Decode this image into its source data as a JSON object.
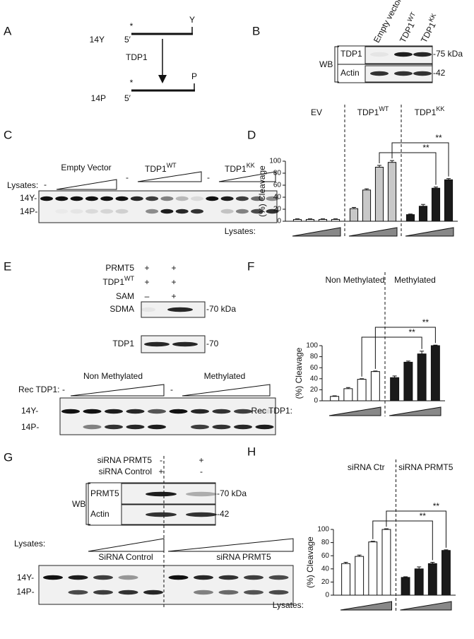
{
  "panels": {
    "A": {
      "label": "A",
      "stars": [
        "*",
        "*"
      ],
      "top_name": "14Y",
      "top_end5": "5′",
      "top_end3": "Y",
      "enzyme": "TDP1",
      "bottom_name": "14P",
      "bottom_end5": "5′",
      "bottom_end3": "P"
    },
    "B": {
      "label": "B",
      "lanes": [
        {
          "text": "Empty vector"
        },
        {
          "text": "TDP1",
          "sup": "WT"
        },
        {
          "text": "TDP1",
          "sup": "KK"
        }
      ],
      "method": "WB",
      "rows": [
        "TDP1",
        "Actin"
      ],
      "markers": [
        "-75 kDa",
        "-42"
      ]
    },
    "C": {
      "label": "C",
      "lysates": "Lysates:",
      "groups": [
        {
          "text": "Empty Vector"
        },
        {
          "text": "TDP1",
          "sup": "WT"
        },
        {
          "text": "TDP1",
          "sup": "KK"
        }
      ],
      "minus": [
        "-",
        "-",
        "-"
      ],
      "bands": [
        "14Y-",
        "14P-"
      ]
    },
    "E": {
      "label": "E",
      "conditions": [
        {
          "name": "PRMT5",
          "marks": [
            "+",
            "+"
          ]
        },
        {
          "name": "TDP1",
          "sup": "WT",
          "marks": [
            "+",
            "+"
          ]
        },
        {
          "name": "SAM",
          "marks": [
            "–",
            "+"
          ]
        }
      ],
      "blots": [
        {
          "name": "SDMA",
          "marker": "-70 kDa"
        },
        {
          "name": "TDP1",
          "marker": "-70"
        }
      ],
      "groups": [
        "Non Methylated",
        "Methylated"
      ],
      "lysates": "Rec TDP1:",
      "minus": [
        "-",
        "-"
      ],
      "bands": [
        "14Y-",
        "14P-"
      ]
    },
    "G": {
      "label": "G",
      "conditions": [
        {
          "name": "siRNA PRMT5",
          "marks": [
            "-",
            "+"
          ]
        },
        {
          "name": "siRNA Control",
          "marks": [
            "+",
            "-"
          ]
        }
      ],
      "method": "WB",
      "blots": [
        {
          "name": "PRMT5",
          "marker": "-70 kDa"
        },
        {
          "name": "Actin",
          "marker": "-42"
        }
      ],
      "lysates": "Lysates:",
      "groups": [
        "SiRNA Control",
        "siRNA PRMT5"
      ],
      "bands": [
        "14Y-",
        "14P-"
      ]
    }
  },
  "chart_data": [
    {
      "type": "bar",
      "panel_label": "D",
      "y_label": "(%) Cleavage",
      "x_label": "Lysates:",
      "ylim": [
        0,
        100
      ],
      "yticks": [
        0,
        20,
        40,
        60,
        80,
        100
      ],
      "annotations": [
        "**",
        "**"
      ],
      "series": [
        {
          "name": "EV",
          "color": "#ffffff",
          "values": [
            3,
            3,
            3,
            3
          ],
          "errors": [
            1,
            1,
            1,
            1
          ]
        },
        {
          "name": "TDP1",
          "name_sup": "WT",
          "color": "#c8c8c8",
          "values": [
            21,
            52,
            90,
            98
          ],
          "errors": [
            2,
            2,
            3,
            3
          ]
        },
        {
          "name": "TDP1",
          "name_sup": "KK",
          "color": "#1a1a1a",
          "values": [
            11,
            25,
            55,
            69
          ],
          "errors": [
            1,
            3,
            2,
            2
          ]
        }
      ]
    },
    {
      "type": "bar",
      "panel_label": "F",
      "y_label": "(%) Cleavage",
      "x_label": "Rec TDP1:",
      "ylim": [
        0,
        100
      ],
      "yticks": [
        0,
        20,
        40,
        60,
        80,
        100
      ],
      "annotations": [
        "**",
        "**"
      ],
      "series": [
        {
          "name": "Non Methylated",
          "color": "#ffffff",
          "values": [
            8,
            22,
            39,
            53
          ],
          "errors": [
            1,
            2,
            1,
            1
          ]
        },
        {
          "name": "Methylated",
          "color": "#1a1a1a",
          "values": [
            42,
            70,
            85,
            100
          ],
          "errors": [
            3,
            2,
            5,
            1
          ]
        }
      ]
    },
    {
      "type": "bar",
      "panel_label": "H",
      "y_label": "(%) Cleavage",
      "x_label": "Lysates:",
      "ylim": [
        0,
        100
      ],
      "yticks": [
        0,
        20,
        40,
        60,
        80,
        100
      ],
      "annotations": [
        "**",
        "**"
      ],
      "series": [
        {
          "name": "siRNA Ctr",
          "color": "#ffffff",
          "values": [
            48,
            59,
            81,
            100
          ],
          "errors": [
            2,
            2,
            1,
            1
          ]
        },
        {
          "name": "siRNA PRMT5",
          "color": "#1a1a1a",
          "values": [
            27,
            40,
            48,
            68
          ],
          "errors": [
            1,
            3,
            2,
            1
          ]
        }
      ]
    }
  ]
}
